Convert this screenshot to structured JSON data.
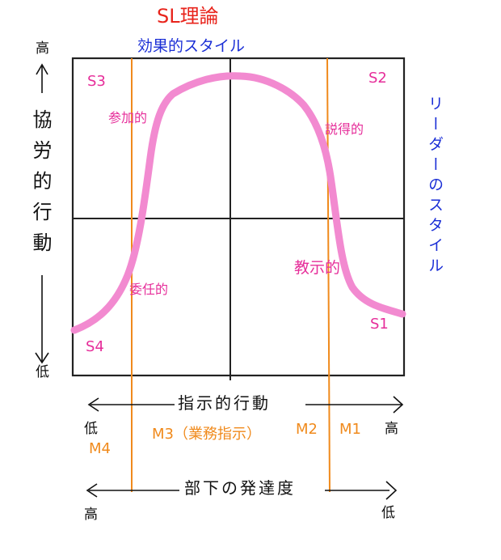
{
  "title": "SL理論",
  "subtitle": "効果的スタイル",
  "right_axis_label": "リーダーのスタイル",
  "y_axis": {
    "label": "協労的行動",
    "high": "高",
    "low": "低"
  },
  "x_axis": {
    "label": "指示的行動",
    "low": "低",
    "high": "高"
  },
  "quadrants": {
    "s1": "S1",
    "s2": "S2",
    "s3": "S3",
    "s4": "S4"
  },
  "styles": {
    "participating": "参加的",
    "persuading": "説得的",
    "delegating": "委任的",
    "directing": "教示的"
  },
  "maturity": {
    "m4": "M4",
    "m3": "M3（業務指示）",
    "m2": "M2",
    "m1": "M1",
    "label": "部下の発達度",
    "high": "高",
    "low": "低"
  },
  "colors": {
    "title": "#e8241c",
    "subtitle": "#1a2ed6",
    "curve": "#f28ad0",
    "style_labels": "#e62e9a",
    "maturity": "#f08a1c",
    "axes": "#111111"
  }
}
